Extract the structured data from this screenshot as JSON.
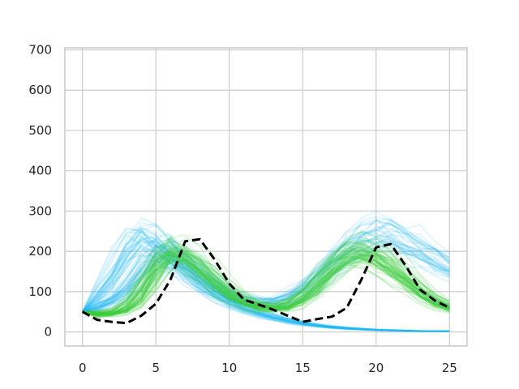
{
  "chart_data": {
    "type": "line",
    "title": "",
    "xlabel": "",
    "ylabel": "",
    "xlim": [
      -1.2,
      26.2
    ],
    "ylim": [
      -35,
      705
    ],
    "x_ticks": [
      0,
      5,
      10,
      15,
      20,
      25
    ],
    "y_ticks": [
      0,
      100,
      200,
      300,
      400,
      500,
      600,
      700
    ],
    "grid": true,
    "legend": "none",
    "reference_series": {
      "style": "dashed",
      "color": "#000000",
      "x": [
        0,
        1,
        2,
        3,
        4,
        5,
        6,
        7,
        8,
        9,
        10,
        11,
        12,
        13,
        14,
        15,
        16,
        17,
        18,
        19,
        20,
        21,
        22,
        23,
        24,
        25
      ],
      "values": [
        50,
        30,
        25,
        22,
        40,
        70,
        130,
        225,
        230,
        180,
        120,
        80,
        68,
        55,
        40,
        25,
        32,
        38,
        60,
        130,
        210,
        218,
        165,
        105,
        78,
        60
      ]
    },
    "ensembles": [
      {
        "color": "#1ebcf2",
        "opacity": 0.16,
        "count": 40,
        "x": [
          0,
          1,
          2,
          3,
          4,
          5,
          6,
          7,
          8,
          9,
          10,
          11,
          12,
          13,
          14,
          15,
          16,
          17,
          18,
          19,
          20,
          21,
          22,
          23,
          24,
          25
        ],
        "values": [
          50,
          80,
          125,
          185,
          235,
          225,
          190,
          150,
          120,
          95,
          75,
          58,
          46,
          36,
          28,
          21,
          16,
          12,
          9,
          7,
          5,
          4,
          3,
          2,
          2,
          2
        ]
      },
      {
        "color": "#20b8f0",
        "opacity": 0.14,
        "count": 40,
        "x": [
          0,
          1,
          2,
          3,
          4,
          5,
          6,
          7,
          8,
          9,
          10,
          11,
          12,
          13,
          14,
          15,
          16,
          17,
          18,
          19,
          20,
          21,
          22,
          23,
          24,
          25
        ],
        "values": [
          50,
          60,
          75,
          100,
          145,
          185,
          190,
          170,
          140,
          110,
          88,
          75,
          70,
          72,
          85,
          105,
          135,
          170,
          205,
          230,
          240,
          235,
          215,
          195,
          175,
          155
        ]
      },
      {
        "color": "#3dcf3d",
        "opacity": 0.18,
        "count": 65,
        "x": [
          0,
          1,
          2,
          3,
          4,
          5,
          6,
          7,
          8,
          9,
          10,
          11,
          12,
          13,
          14,
          15,
          16,
          17,
          18,
          19,
          20,
          21,
          22,
          23,
          24,
          25
        ],
        "values": [
          50,
          42,
          45,
          55,
          90,
          160,
          200,
          190,
          160,
          125,
          95,
          75,
          62,
          57,
          62,
          82,
          115,
          155,
          190,
          200,
          185,
          160,
          130,
          100,
          75,
          58
        ]
      }
    ]
  }
}
